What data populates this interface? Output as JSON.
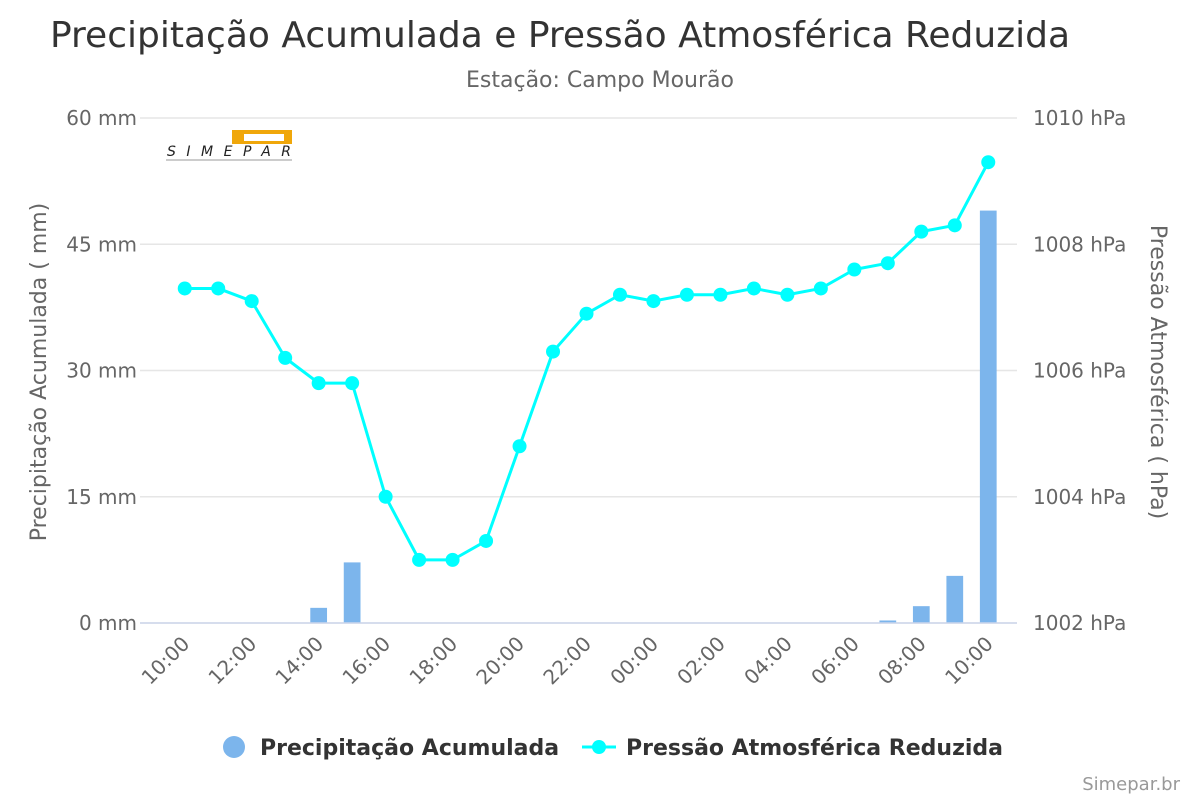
{
  "chart_data": {
    "type": "bar+line",
    "title": "Precipitação Acumulada e Pressão Atmosférica Reduzida",
    "subtitle": "Estação: Campo Mourão",
    "x_tick_labels": [
      "10:00",
      "12:00",
      "14:00",
      "16:00",
      "18:00",
      "20:00",
      "22:00",
      "00:00",
      "02:00",
      "04:00",
      "06:00",
      "08:00",
      "10:00"
    ],
    "y_left": {
      "label": "Precipitação Acumulada ( mm)",
      "range": [
        0,
        60
      ],
      "ticks": [
        "0 mm",
        "15 mm",
        "30 mm",
        "45 mm",
        "60 mm"
      ]
    },
    "y_right": {
      "label": "Pressão Atmosférica ( hPa)",
      "range": [
        1002,
        1010
      ],
      "ticks": [
        "1002 hPa",
        "1004 hPa",
        "1006 hPa",
        "1008 hPa",
        "1010 hPa"
      ]
    },
    "hours": [
      "10:00",
      "11:00",
      "12:00",
      "13:00",
      "14:00",
      "15:00",
      "16:00",
      "17:00",
      "18:00",
      "19:00",
      "20:00",
      "21:00",
      "22:00",
      "23:00",
      "00:00",
      "01:00",
      "02:00",
      "03:00",
      "04:00",
      "05:00",
      "06:00",
      "07:00",
      "08:00",
      "09:00",
      "10:00"
    ],
    "series": [
      {
        "name": "Precipitação Acumulada",
        "type": "bar",
        "axis": "left",
        "color": "#7cb5ec",
        "values": [
          0,
          0,
          0,
          0,
          1.8,
          7.2,
          0,
          0,
          0,
          0,
          0,
          0,
          0,
          0,
          0,
          0,
          0,
          0,
          0,
          0,
          0,
          0.3,
          2.0,
          5.6,
          49.0
        ]
      },
      {
        "name": "Pressão Atmosférica Reduzida",
        "type": "line",
        "axis": "right",
        "color": "#00ffff",
        "values": [
          1007.3,
          1007.3,
          1007.1,
          1006.2,
          1005.8,
          1005.8,
          1004.0,
          1003.0,
          1003.0,
          1003.3,
          1004.8,
          1006.3,
          1006.9,
          1007.2,
          1007.1,
          1007.2,
          1007.2,
          1007.3,
          1007.2,
          1007.3,
          1007.6,
          1007.7,
          1008.2,
          1008.3,
          1009.3
        ]
      }
    ],
    "legend_position": "bottom"
  },
  "logo": {
    "text": "SIMEPAR"
  },
  "credit": "Simepar.br"
}
